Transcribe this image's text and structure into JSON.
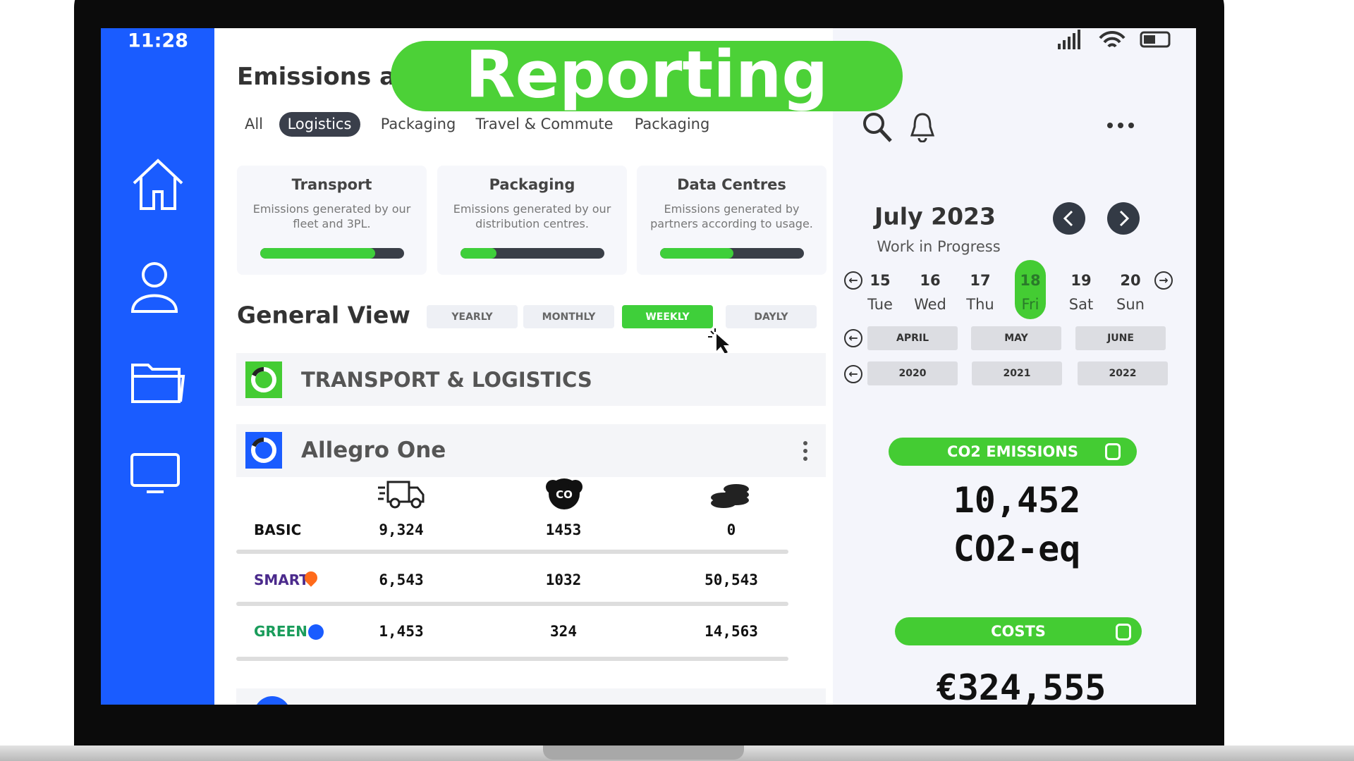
{
  "status": {
    "time": "11:28"
  },
  "header": {
    "title": "Emissions ar",
    "banner": "Reporting"
  },
  "tabs": [
    "All",
    "Logistics",
    "Packaging",
    "Travel & Commute",
    "Packaging"
  ],
  "cards": [
    {
      "title": "Transport",
      "description": "Emissions generated by our fleet and 3PL.",
      "progress": 80
    },
    {
      "title": "Packaging",
      "description": "Emissions generated by our distribution centres.",
      "progress": 25
    },
    {
      "title": "Data Centres",
      "description": "Emissions generated by partners according to usage.",
      "progress": 51
    }
  ],
  "general_view": {
    "title": "General View",
    "periods": [
      "YEARLY",
      "MONTHLY",
      "WEEKLY",
      "DAYLY"
    ]
  },
  "sections": {
    "group": "TRANSPORT & LOGISTICS",
    "company": "Allegro One"
  },
  "table": {
    "rows": [
      [
        "BASIC",
        "9,324",
        "1453",
        "0"
      ],
      [
        "SMART",
        "6,543",
        "1032",
        "50,543"
      ],
      [
        "GREEN",
        "1,453",
        "324",
        "14,563"
      ]
    ]
  },
  "calendar": {
    "month": "July 2023",
    "status": "Work in Progress",
    "days": [
      {
        "day": "15",
        "weekday": "Tue"
      },
      {
        "day": "16",
        "weekday": "Wed"
      },
      {
        "day": "17",
        "weekday": "Thu"
      },
      {
        "day": "18",
        "weekday": "Fri"
      },
      {
        "day": "19",
        "weekday": "Sat"
      },
      {
        "day": "20",
        "weekday": "Sun"
      }
    ],
    "months": [
      "APRIL",
      "MAY",
      "JUNE"
    ],
    "years": [
      "2020",
      "2021",
      "2022"
    ]
  },
  "summary": {
    "emissions_label": "CO2 EMISSIONS",
    "emissions_value": "10,452",
    "emissions_unit": "CO2-eq",
    "costs_label": "COSTS",
    "costs_value": "€324,555"
  }
}
